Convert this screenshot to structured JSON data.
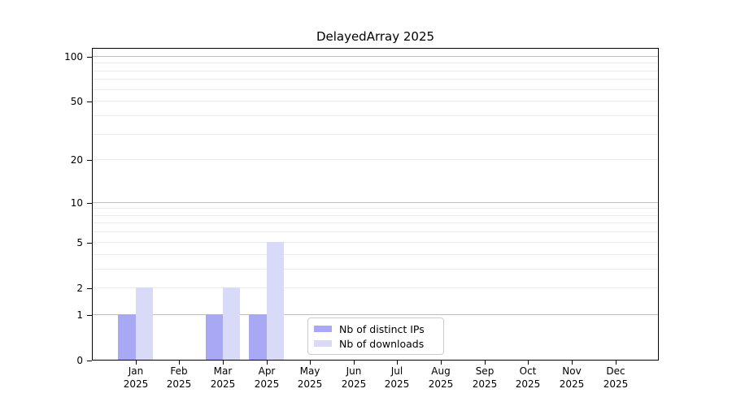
{
  "chart_data": {
    "type": "bar",
    "title": "DelayedArray 2025",
    "x_tick_labels": [
      {
        "top": "Jan",
        "bottom": "2025"
      },
      {
        "top": "Feb",
        "bottom": "2025"
      },
      {
        "top": "Mar",
        "bottom": "2025"
      },
      {
        "top": "Apr",
        "bottom": "2025"
      },
      {
        "top": "May",
        "bottom": "2025"
      },
      {
        "top": "Jun",
        "bottom": "2025"
      },
      {
        "top": "Jul",
        "bottom": "2025"
      },
      {
        "top": "Aug",
        "bottom": "2025"
      },
      {
        "top": "Sep",
        "bottom": "2025"
      },
      {
        "top": "Oct",
        "bottom": "2025"
      },
      {
        "top": "Nov",
        "bottom": "2025"
      },
      {
        "top": "Dec",
        "bottom": "2025"
      }
    ],
    "series": [
      {
        "name": "Nb of distinct IPs",
        "color": "#a8a8f5",
        "values": [
          1,
          0,
          1,
          1,
          0,
          0,
          0,
          0,
          0,
          0,
          0,
          0
        ]
      },
      {
        "name": "Nb of downloads",
        "color": "#d9d9f8",
        "values": [
          2,
          0,
          2,
          5,
          0,
          0,
          0,
          0,
          0,
          0,
          0,
          0
        ]
      }
    ],
    "y_tick_values": [
      0,
      1,
      2,
      5,
      10,
      20,
      50,
      100
    ],
    "y_tick_labels": [
      "0",
      "1",
      "2",
      "5",
      "10",
      "20",
      "50",
      "100"
    ],
    "y_minor_grid_values": [
      2,
      3,
      4,
      5,
      6,
      7,
      8,
      9,
      20,
      30,
      40,
      50,
      60,
      70,
      80,
      90
    ],
    "y_major_grid_values": [
      1,
      10,
      100
    ],
    "scale": "log1p",
    "ylim": [
      0,
      114
    ],
    "grid": "horizontal",
    "legend_position": "inside-bottom-center",
    "colors": {
      "major_grid": "#bdbdbd",
      "minor_grid": "#ebebeb",
      "axis": "#000000",
      "legend_border": "#cccccc"
    }
  }
}
